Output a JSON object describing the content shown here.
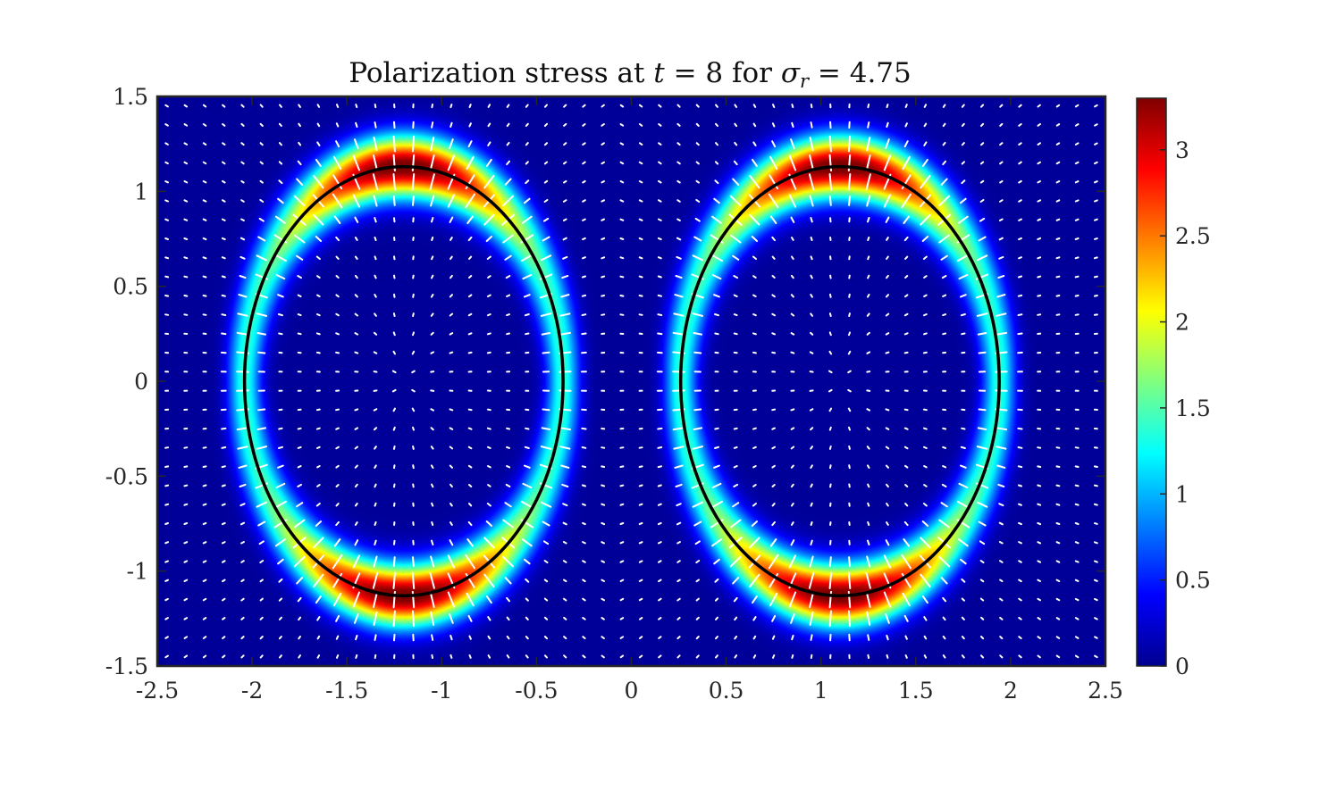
{
  "chart_data": {
    "type": "heatmap",
    "title_parts": {
      "prefix": "Polarization stress at ",
      "t_symbol": "t",
      "eq1": " = 8 for ",
      "sigma_symbol": "σ",
      "sigma_sub": "r",
      "eq2": " = 4.75"
    },
    "xlabel": "",
    "ylabel": "",
    "xlim": [
      -2.5,
      2.5
    ],
    "ylim": [
      -1.5,
      1.5
    ],
    "x_ticks": [
      "-2.5",
      "-2",
      "-1.5",
      "-1",
      "-0.5",
      "0",
      "0.5",
      "1",
      "1.5",
      "2",
      "2.5"
    ],
    "x_tick_values": [
      -2.5,
      -2,
      -1.5,
      -1,
      -0.5,
      0,
      0.5,
      1,
      1.5,
      2,
      2.5
    ],
    "y_ticks": [
      "1.5",
      "1",
      "0.5",
      "0",
      "-0.5",
      "-1",
      "-1.5"
    ],
    "y_tick_values": [
      1.5,
      1,
      0.5,
      0,
      -0.5,
      -1,
      -1.5
    ],
    "colormap": "jet",
    "colorbar": {
      "range": [
        0,
        3.3
      ],
      "ticks": [
        "0",
        "0.5",
        "1",
        "1.5",
        "2",
        "2.5",
        "3"
      ],
      "tick_values": [
        0,
        0.5,
        1,
        1.5,
        2,
        2.5,
        3
      ]
    },
    "ellipses": [
      {
        "cx": -1.2,
        "cy": 0,
        "rx": 0.84,
        "ry": 1.13,
        "peak_top": 3.3,
        "peak_side": 1.3
      },
      {
        "cx": 1.1,
        "cy": 0,
        "rx": 0.84,
        "ry": 1.13,
        "peak_top": 3.3,
        "peak_side": 1.3
      }
    ],
    "ellipse_color": "#000000",
    "quiver": {
      "color": "#ffffff",
      "grid_x_count": 50,
      "grid_y_count": 30
    }
  }
}
